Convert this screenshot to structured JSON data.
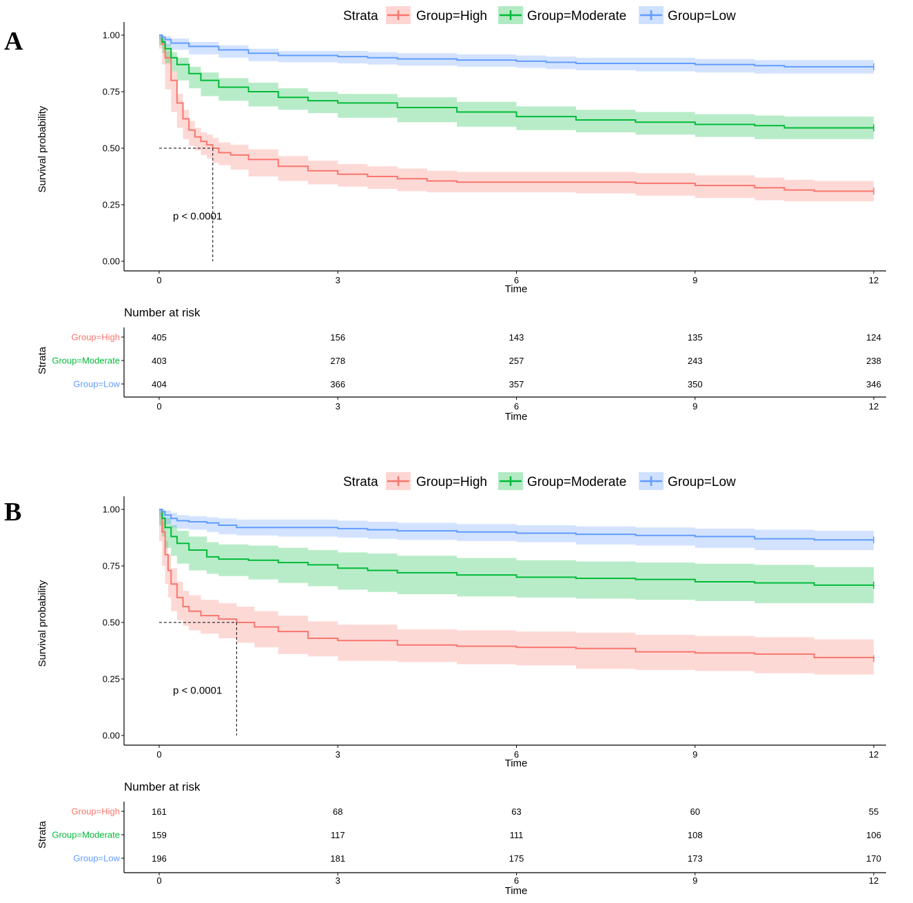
{
  "chart_data": [
    {
      "type": "line",
      "panel_label": "A",
      "title": "",
      "xlabel": "Time",
      "ylabel": "Survival probability",
      "x_ticks": [
        "0",
        "3",
        "6",
        "9",
        "12"
      ],
      "y_ticks": [
        "0.00",
        "0.25",
        "0.50",
        "0.75",
        "1.00"
      ],
      "xlim": [
        0,
        12
      ],
      "ylim": [
        0,
        1
      ],
      "legend_title": "Strata",
      "legend_position": "top",
      "pvalue": "p < 0.0001",
      "median_line": {
        "time": 0.9,
        "survival": 0.5
      },
      "series": [
        {
          "name": "Group=High",
          "color": "#F8766D",
          "band": "#F8766D",
          "x": [
            0,
            0.05,
            0.1,
            0.2,
            0.3,
            0.4,
            0.5,
            0.6,
            0.7,
            0.8,
            0.9,
            1.0,
            1.2,
            1.5,
            2.0,
            2.5,
            3.0,
            3.5,
            4.0,
            4.5,
            5.0,
            6.0,
            7.0,
            8.0,
            9.0,
            10.0,
            10.5,
            11.0,
            12.0
          ],
          "y": [
            1.0,
            0.96,
            0.9,
            0.8,
            0.7,
            0.63,
            0.58,
            0.55,
            0.53,
            0.515,
            0.5,
            0.48,
            0.47,
            0.45,
            0.42,
            0.4,
            0.385,
            0.375,
            0.365,
            0.355,
            0.35,
            0.35,
            0.35,
            0.345,
            0.335,
            0.325,
            0.315,
            0.31,
            0.31
          ],
          "lower": [
            1.0,
            0.94,
            0.87,
            0.76,
            0.66,
            0.59,
            0.54,
            0.51,
            0.49,
            0.47,
            0.455,
            0.435,
            0.425,
            0.405,
            0.375,
            0.355,
            0.34,
            0.33,
            0.32,
            0.31,
            0.305,
            0.305,
            0.305,
            0.3,
            0.29,
            0.28,
            0.27,
            0.265,
            0.265
          ],
          "upper": [
            1.0,
            0.98,
            0.93,
            0.84,
            0.74,
            0.67,
            0.62,
            0.59,
            0.57,
            0.56,
            0.545,
            0.525,
            0.515,
            0.495,
            0.465,
            0.445,
            0.43,
            0.42,
            0.41,
            0.4,
            0.395,
            0.395,
            0.395,
            0.39,
            0.38,
            0.37,
            0.36,
            0.355,
            0.355
          ]
        },
        {
          "name": "Group=Moderate",
          "color": "#00BA38",
          "band": "#00BA38",
          "x": [
            0,
            0.05,
            0.1,
            0.2,
            0.3,
            0.5,
            0.7,
            1.0,
            1.5,
            2.0,
            2.5,
            3.0,
            4.0,
            5.0,
            6.0,
            7.0,
            8.0,
            9.0,
            10.0,
            10.5,
            11.0,
            12.0
          ],
          "y": [
            1.0,
            0.97,
            0.94,
            0.9,
            0.87,
            0.83,
            0.8,
            0.77,
            0.75,
            0.725,
            0.71,
            0.7,
            0.68,
            0.66,
            0.64,
            0.625,
            0.615,
            0.605,
            0.6,
            0.59,
            0.59,
            0.59
          ],
          "lower": [
            1.0,
            0.955,
            0.92,
            0.875,
            0.84,
            0.8,
            0.765,
            0.73,
            0.71,
            0.685,
            0.67,
            0.655,
            0.635,
            0.615,
            0.595,
            0.58,
            0.57,
            0.56,
            0.55,
            0.54,
            0.54,
            0.54
          ],
          "upper": [
            1.0,
            0.985,
            0.96,
            0.925,
            0.9,
            0.86,
            0.835,
            0.81,
            0.79,
            0.765,
            0.75,
            0.74,
            0.725,
            0.705,
            0.685,
            0.67,
            0.66,
            0.65,
            0.645,
            0.64,
            0.64,
            0.64
          ]
        },
        {
          "name": "Group=Low",
          "color": "#619CFF",
          "band": "#619CFF",
          "x": [
            0,
            0.05,
            0.1,
            0.2,
            0.5,
            1.0,
            1.5,
            2.0,
            3.0,
            3.5,
            4.0,
            5.0,
            6.0,
            6.5,
            7.0,
            8.0,
            9.0,
            10.0,
            10.5,
            11.0,
            12.0
          ],
          "y": [
            1.0,
            0.99,
            0.98,
            0.965,
            0.95,
            0.935,
            0.92,
            0.91,
            0.905,
            0.9,
            0.895,
            0.89,
            0.885,
            0.88,
            0.875,
            0.875,
            0.87,
            0.865,
            0.86,
            0.86,
            0.86
          ],
          "lower": [
            1.0,
            0.98,
            0.965,
            0.95,
            0.935,
            0.915,
            0.9,
            0.885,
            0.88,
            0.875,
            0.87,
            0.865,
            0.86,
            0.855,
            0.85,
            0.845,
            0.84,
            0.835,
            0.83,
            0.83,
            0.83
          ],
          "upper": [
            1.0,
            1.0,
            0.995,
            0.985,
            0.97,
            0.955,
            0.94,
            0.93,
            0.93,
            0.925,
            0.92,
            0.915,
            0.91,
            0.905,
            0.9,
            0.9,
            0.895,
            0.89,
            0.89,
            0.89,
            0.89
          ]
        }
      ],
      "risk_table": {
        "title": "Number at risk",
        "ylabel": "Strata",
        "xlabel": "Time",
        "rows": [
          {
            "label": "Group=High",
            "color": "#F8766D",
            "values": [
              "405",
              "156",
              "143",
              "135",
              "124"
            ]
          },
          {
            "label": "Group=Moderate",
            "color": "#00BA38",
            "values": [
              "403",
              "278",
              "257",
              "243",
              "238"
            ]
          },
          {
            "label": "Group=Low",
            "color": "#619CFF",
            "values": [
              "404",
              "366",
              "357",
              "350",
              "346"
            ]
          }
        ]
      }
    },
    {
      "type": "line",
      "panel_label": "B",
      "title": "",
      "xlabel": "Time",
      "ylabel": "Survival probability",
      "x_ticks": [
        "0",
        "3",
        "6",
        "9",
        "12"
      ],
      "y_ticks": [
        "0.00",
        "0.25",
        "0.50",
        "0.75",
        "1.00"
      ],
      "xlim": [
        0,
        12
      ],
      "ylim": [
        0,
        1
      ],
      "legend_title": "Strata",
      "legend_position": "top",
      "pvalue": "p < 0.0001",
      "median_line": {
        "time": 1.3,
        "survival": 0.5
      },
      "series": [
        {
          "name": "Group=High",
          "color": "#F8766D",
          "band": "#F8766D",
          "x": [
            0,
            0.05,
            0.1,
            0.15,
            0.2,
            0.3,
            0.4,
            0.5,
            0.7,
            1.0,
            1.3,
            1.6,
            2.0,
            2.5,
            3.0,
            4.0,
            5.0,
            6.0,
            7.0,
            8.0,
            9.0,
            10.0,
            11.0,
            12.0
          ],
          "y": [
            1.0,
            0.9,
            0.8,
            0.73,
            0.67,
            0.61,
            0.57,
            0.55,
            0.53,
            0.515,
            0.5,
            0.48,
            0.46,
            0.43,
            0.42,
            0.4,
            0.395,
            0.39,
            0.385,
            0.37,
            0.365,
            0.36,
            0.345,
            0.34
          ],
          "lower": [
            1.0,
            0.86,
            0.75,
            0.67,
            0.61,
            0.55,
            0.51,
            0.485,
            0.465,
            0.45,
            0.43,
            0.41,
            0.39,
            0.36,
            0.35,
            0.33,
            0.325,
            0.315,
            0.31,
            0.295,
            0.29,
            0.285,
            0.275,
            0.27
          ],
          "upper": [
            1.0,
            0.95,
            0.86,
            0.8,
            0.74,
            0.68,
            0.64,
            0.62,
            0.6,
            0.585,
            0.57,
            0.55,
            0.53,
            0.505,
            0.49,
            0.47,
            0.465,
            0.46,
            0.455,
            0.445,
            0.44,
            0.435,
            0.425,
            0.42
          ]
        },
        {
          "name": "Group=Moderate",
          "color": "#00BA38",
          "band": "#00BA38",
          "x": [
            0,
            0.05,
            0.1,
            0.2,
            0.3,
            0.5,
            0.8,
            1.0,
            1.5,
            2.0,
            2.5,
            3.0,
            3.5,
            4.0,
            5.0,
            6.0,
            7.0,
            8.0,
            9.0,
            10.0,
            11.0,
            12.0
          ],
          "y": [
            1.0,
            0.96,
            0.92,
            0.88,
            0.85,
            0.82,
            0.79,
            0.78,
            0.775,
            0.765,
            0.755,
            0.74,
            0.73,
            0.72,
            0.71,
            0.7,
            0.695,
            0.69,
            0.68,
            0.675,
            0.665,
            0.665
          ],
          "lower": [
            1.0,
            0.93,
            0.88,
            0.83,
            0.795,
            0.76,
            0.73,
            0.715,
            0.705,
            0.69,
            0.675,
            0.66,
            0.645,
            0.635,
            0.625,
            0.615,
            0.61,
            0.605,
            0.6,
            0.595,
            0.585,
            0.585
          ],
          "upper": [
            1.0,
            0.99,
            0.965,
            0.93,
            0.905,
            0.88,
            0.855,
            0.845,
            0.84,
            0.83,
            0.82,
            0.81,
            0.805,
            0.795,
            0.785,
            0.775,
            0.77,
            0.765,
            0.76,
            0.755,
            0.745,
            0.745
          ]
        },
        {
          "name": "Group=Low",
          "color": "#619CFF",
          "band": "#619CFF",
          "x": [
            0,
            0.05,
            0.1,
            0.2,
            0.3,
            0.5,
            0.8,
            1.0,
            1.3,
            2.0,
            3.0,
            3.5,
            4.0,
            5.0,
            6.0,
            7.0,
            8.0,
            9.0,
            10.0,
            11.0,
            12.0
          ],
          "y": [
            1.0,
            0.99,
            0.975,
            0.96,
            0.95,
            0.945,
            0.94,
            0.93,
            0.92,
            0.92,
            0.915,
            0.91,
            0.905,
            0.9,
            0.895,
            0.89,
            0.885,
            0.88,
            0.87,
            0.865,
            0.865
          ],
          "lower": [
            1.0,
            0.97,
            0.955,
            0.935,
            0.92,
            0.915,
            0.91,
            0.9,
            0.89,
            0.885,
            0.88,
            0.875,
            0.87,
            0.865,
            0.86,
            0.855,
            0.845,
            0.84,
            0.83,
            0.82,
            0.82
          ],
          "upper": [
            1.0,
            1.0,
            0.995,
            0.985,
            0.975,
            0.97,
            0.965,
            0.96,
            0.955,
            0.955,
            0.95,
            0.945,
            0.94,
            0.935,
            0.93,
            0.925,
            0.92,
            0.915,
            0.91,
            0.905,
            0.905
          ]
        }
      ],
      "risk_table": {
        "title": "Number at risk",
        "ylabel": "Strata",
        "xlabel": "Time",
        "rows": [
          {
            "label": "Group=High",
            "color": "#F8766D",
            "values": [
              "161",
              "68",
              "63",
              "60",
              "55"
            ]
          },
          {
            "label": "Group=Moderate",
            "color": "#00BA38",
            "values": [
              "159",
              "117",
              "111",
              "108",
              "106"
            ]
          },
          {
            "label": "Group=Low",
            "color": "#619CFF",
            "values": [
              "196",
              "181",
              "175",
              "173",
              "170"
            ]
          }
        ]
      }
    }
  ]
}
